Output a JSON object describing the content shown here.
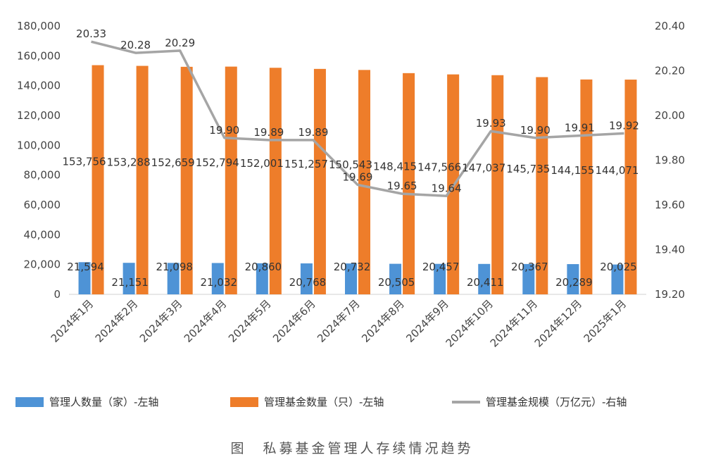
{
  "chart_data": {
    "type": "bar",
    "categories": [
      "2024年1月",
      "2024年2月",
      "2024年3月",
      "2024年4月",
      "2024年5月",
      "2024年6月",
      "2024年7月",
      "2024年8月",
      "2024年9月",
      "2024年10月",
      "2024年11月",
      "2024年12月",
      "2025年1月"
    ],
    "series": [
      {
        "name": "管理人数量（家）-左轴",
        "type": "bar",
        "axis": "left",
        "color": "#4e93d6",
        "values": [
          21594,
          21151,
          21098,
          21032,
          20860,
          20768,
          20732,
          20505,
          20457,
          20411,
          20367,
          20289,
          20025
        ],
        "labels": [
          "21,594",
          "21,151",
          "21,098",
          "21,032",
          "20,860",
          "20,768",
          "20,732",
          "20,505",
          "20,457",
          "20,411",
          "20,367",
          "20,289",
          "20,025"
        ]
      },
      {
        "name": "管理基金数量（只）-左轴",
        "type": "bar",
        "axis": "left",
        "color": "#ee7d2a",
        "values": [
          153756,
          153288,
          152659,
          152794,
          152001,
          151257,
          150543,
          148415,
          147566,
          147037,
          145735,
          144155,
          144071
        ],
        "labels": [
          "153,756",
          "153,288",
          "152,659",
          "152,794",
          "152,001",
          "151,257",
          "150,543",
          "148,415",
          "147,566",
          "147,037",
          "145,735",
          "144,155",
          "144,071"
        ]
      },
      {
        "name": "管理基金规模（万亿元）-右轴",
        "type": "line",
        "axis": "right",
        "color": "#a5a5a5",
        "values": [
          20.33,
          20.28,
          20.29,
          19.9,
          19.89,
          19.89,
          19.69,
          19.65,
          19.64,
          19.93,
          19.9,
          19.91,
          19.92
        ],
        "labels": [
          "20.33",
          "20.28",
          "20.29",
          "19.90",
          "19.89",
          "19.89",
          "19.69",
          "19.65",
          "19.64",
          "19.93",
          "19.90",
          "19.91",
          "19.92"
        ]
      }
    ],
    "left_axis": {
      "ylim": [
        0,
        180000
      ],
      "ticks": [
        0,
        20000,
        40000,
        60000,
        80000,
        100000,
        120000,
        140000,
        160000,
        180000
      ],
      "tick_labels": [
        "0",
        "20,000",
        "40,000",
        "60,000",
        "80,000",
        "100,000",
        "120,000",
        "140,000",
        "160,000",
        "180,000"
      ]
    },
    "right_axis": {
      "ylim": [
        19.2,
        20.4
      ],
      "ticks": [
        19.2,
        19.4,
        19.6,
        19.8,
        20.0,
        20.2,
        20.4
      ],
      "tick_labels": [
        "19.20",
        "19.40",
        "19.60",
        "19.80",
        "20.00",
        "20.20",
        "20.40"
      ]
    },
    "legend_position": "bottom",
    "grid": false
  },
  "caption": "图　私募基金管理人存续情况趋势"
}
